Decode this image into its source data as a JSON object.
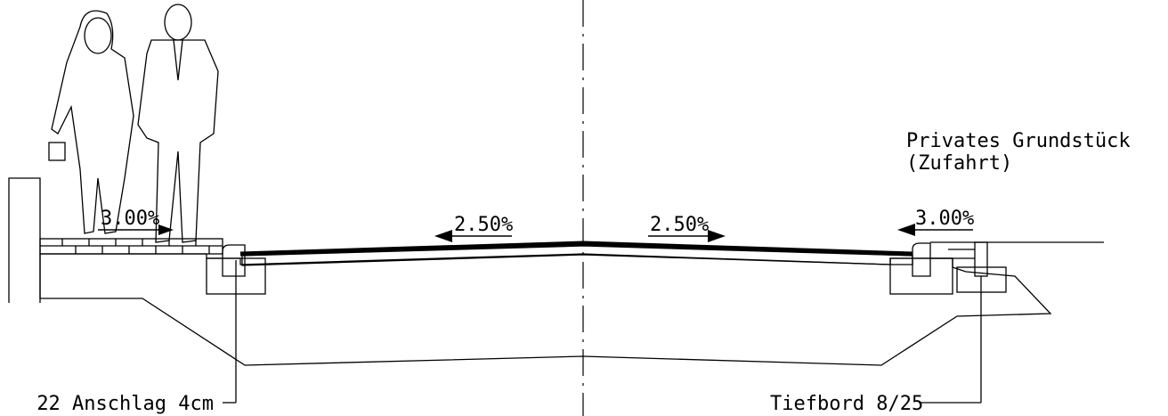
{
  "slopes": [
    "3.00%",
    "2.50%",
    "2.50%",
    "3.00%"
  ],
  "private_property": {
    "line1": "Privates Grundstück",
    "line2": "(Zufahrt)"
  },
  "callouts": [
    "22 Anschlag 4cm",
    "Tiefbord 8/25"
  ]
}
